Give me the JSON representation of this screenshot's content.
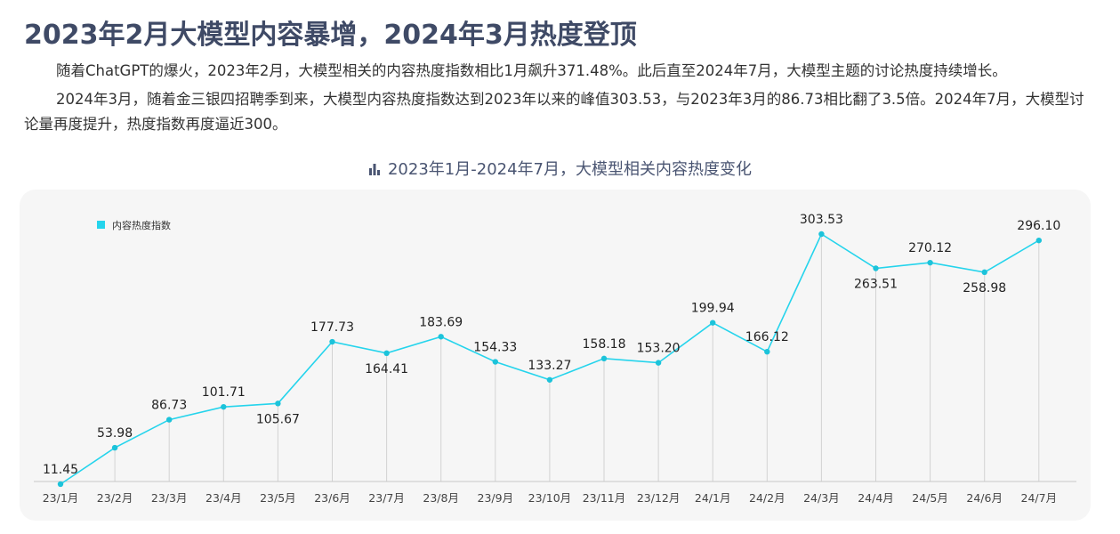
{
  "page": {
    "heading": "2023年2月大模型内容暴增，2024年3月热度登顶",
    "paragraph1": "随着ChatGPT的爆火，2023年2月，大模型相关的内容热度指数相比1月飙升371.48%。此后直至2024年7月，大模型主题的讨论热度持续增长。",
    "paragraph2": "2024年3月，随着金三银四招聘季到来，大模型内容热度指数达到2023年以来的峰值303.53，与2023年3月的86.73相比翻了3.5倍。2024年7月，大模型讨论量再度提升，热度指数再度逼近300。"
  },
  "colors": {
    "line": "#25d4ec",
    "marker": "#1cc3da",
    "gridline": "#d3d3d3",
    "card": "#f6f6f6",
    "heading": "#3f4a66"
  },
  "chart_data": {
    "type": "line",
    "title": "2023年1月-2024年7月，大模型相关内容热度变化",
    "title_icon": "bar-chart-icon",
    "categories": [
      "23/1月",
      "23/2月",
      "23/3月",
      "23/4月",
      "23/5月",
      "23/6月",
      "23/7月",
      "23/8月",
      "23/9月",
      "23/10月",
      "23/11月",
      "23/12月",
      "24/1月",
      "24/2月",
      "24/3月",
      "24/4月",
      "24/5月",
      "24/6月",
      "24/7月"
    ],
    "series": [
      {
        "name": "内容热度指数",
        "values": [
          11.45,
          53.98,
          86.73,
          101.71,
          105.67,
          177.73,
          164.41,
          183.69,
          154.33,
          133.27,
          158.18,
          153.2,
          199.94,
          166.12,
          303.53,
          263.51,
          270.12,
          258.98,
          296.1
        ],
        "labels": [
          "11.45",
          "53.98",
          "86.73",
          "101.71",
          "105.67",
          "177.73",
          "164.41",
          "183.69",
          "154.33",
          "133.27",
          "158.18",
          "153.20",
          "199.94",
          "166.12",
          "303.53",
          "263.51",
          "270.12",
          "258.98",
          "296.10"
        ],
        "label_side": [
          "above",
          "above",
          "above",
          "above",
          "below",
          "above",
          "below",
          "above",
          "above",
          "above",
          "above",
          "above",
          "above",
          "above",
          "above",
          "below",
          "above",
          "below",
          "above"
        ]
      }
    ],
    "xlabel": "",
    "ylabel": "",
    "ylim": [
      0,
      303.53
    ],
    "legend_position": "top-left",
    "grid": "vertical"
  }
}
